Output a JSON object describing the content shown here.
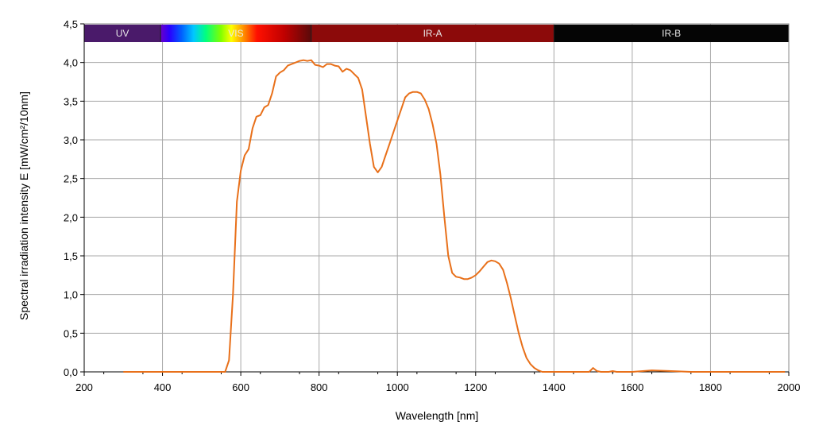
{
  "chart_data": {
    "type": "line",
    "xlabel": "Wavelength [nm]",
    "ylabel": "Spectral irradiation intensity E [mW/cm²/10nm]",
    "xlim": [
      200,
      2000
    ],
    "ylim": [
      0,
      4.5
    ],
    "x_ticks": [
      200,
      400,
      600,
      800,
      1000,
      1200,
      1400,
      1600,
      1800,
      2000
    ],
    "x_tick_labels": [
      "200",
      "400",
      "600",
      "800",
      "1000",
      "1200",
      "1400",
      "1600",
      "1800",
      "2000"
    ],
    "y_ticks": [
      0,
      0.5,
      1,
      1.5,
      2,
      2.5,
      3,
      3.5,
      4,
      4.5
    ],
    "y_tick_labels": [
      "0,0",
      "0,5",
      "1,0",
      "1,5",
      "2,0",
      "2,5",
      "3,0",
      "3,5",
      "4,0",
      "4,5"
    ],
    "grid": true,
    "line_color": "#e8701a",
    "bands": [
      {
        "label": "UV",
        "from": 200,
        "to": 395,
        "color": "#4a1a6a"
      },
      {
        "label": "VIS",
        "from": 395,
        "to": 780,
        "color": "spectrum"
      },
      {
        "label": "IR-A",
        "from": 780,
        "to": 1400,
        "color": "#8c0a0a"
      },
      {
        "label": "IR-B",
        "from": 1400,
        "to": 2000,
        "color": "#050505"
      }
    ],
    "series": [
      {
        "x": [
          300,
          400,
          540,
          560,
          570,
          580,
          590,
          600,
          610,
          620,
          630,
          640,
          650,
          660,
          670,
          680,
          690,
          700,
          710,
          720,
          730,
          740,
          750,
          760,
          770,
          780,
          790,
          800,
          810,
          820,
          830,
          840,
          850,
          860,
          870,
          880,
          890,
          900,
          910,
          920,
          930,
          940,
          950,
          960,
          970,
          980,
          990,
          1000,
          1010,
          1020,
          1030,
          1040,
          1050,
          1060,
          1070,
          1080,
          1090,
          1100,
          1110,
          1120,
          1130,
          1140,
          1150,
          1160,
          1170,
          1180,
          1190,
          1200,
          1210,
          1220,
          1230,
          1240,
          1250,
          1260,
          1270,
          1280,
          1290,
          1300,
          1310,
          1320,
          1330,
          1340,
          1350,
          1360,
          1370,
          1380,
          1400,
          1490,
          1500,
          1510,
          1520,
          1540,
          1550,
          1560,
          1600,
          1650,
          1700,
          1750,
          1800,
          1990
        ],
        "y": [
          0.0,
          0.0,
          0.0,
          0.0,
          0.15,
          1.0,
          2.2,
          2.6,
          2.8,
          2.88,
          3.15,
          3.3,
          3.32,
          3.42,
          3.45,
          3.6,
          3.82,
          3.87,
          3.9,
          3.96,
          3.98,
          4.0,
          4.02,
          4.03,
          4.02,
          4.03,
          3.97,
          3.96,
          3.94,
          3.98,
          3.98,
          3.96,
          3.95,
          3.88,
          3.92,
          3.9,
          3.85,
          3.8,
          3.65,
          3.3,
          2.95,
          2.65,
          2.58,
          2.65,
          2.8,
          2.95,
          3.1,
          3.25,
          3.4,
          3.55,
          3.6,
          3.62,
          3.62,
          3.6,
          3.52,
          3.4,
          3.2,
          2.95,
          2.55,
          2.0,
          1.5,
          1.28,
          1.23,
          1.22,
          1.2,
          1.2,
          1.22,
          1.25,
          1.3,
          1.36,
          1.42,
          1.44,
          1.43,
          1.4,
          1.32,
          1.15,
          0.95,
          0.72,
          0.5,
          0.32,
          0.18,
          0.1,
          0.05,
          0.02,
          0.0,
          0.0,
          0.0,
          0.0,
          0.05,
          0.01,
          0.0,
          0.0,
          0.01,
          0.0,
          0.0,
          0.02,
          0.01,
          0.0,
          0.0,
          0.0
        ]
      }
    ]
  }
}
